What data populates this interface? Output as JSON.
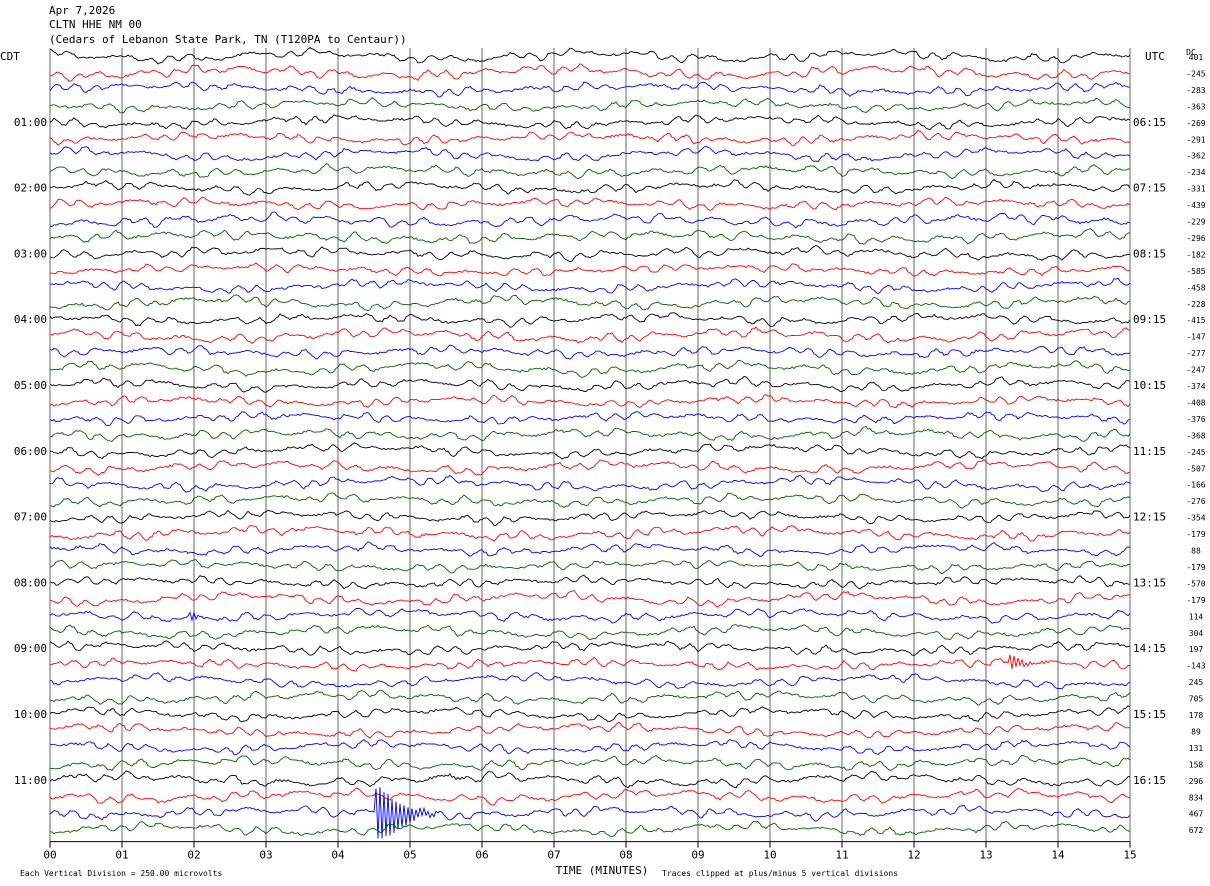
{
  "header": {
    "date": "Apr 7,2026",
    "station": "CLTN HHE NM 00",
    "location": "(Cedars of Lebanon State Park, TN (T120PA to Centaur))"
  },
  "chart_data": {
    "type": "line",
    "title": "Apr 7,2026 CLTN HHE NM 00 (Cedars of Lebanon State Park, TN (T120PA to Centaur))",
    "left_axis_title": "CDT",
    "right_axis_title": "UTC",
    "dc_label": "DC",
    "xlabel": "TIME (MINUTES)",
    "x_ticks": [
      "00",
      "01",
      "02",
      "03",
      "04",
      "05",
      "06",
      "07",
      "08",
      "09",
      "10",
      "11",
      "12",
      "13",
      "14",
      "15"
    ],
    "xlim": [
      0,
      15
    ],
    "rows": 48,
    "row_interval_minutes": 15,
    "left_hour_labels": [
      "01:00",
      "02:00",
      "03:00",
      "04:00",
      "05:00",
      "06:00",
      "07:00",
      "08:00",
      "09:00",
      "10:00",
      "11:00"
    ],
    "right_hour_labels": [
      "06:15",
      "07:15",
      "08:15",
      "09:15",
      "10:15",
      "11:15",
      "12:15",
      "13:15",
      "14:15",
      "15:15",
      "16:15"
    ],
    "trace_colors": [
      "#000000",
      "#ff0000",
      "#0000ff",
      "#006400"
    ],
    "dc_offsets": [
      "401",
      "-245",
      "-283",
      "-363",
      "-269",
      "-291",
      "-362",
      "-234",
      "-331",
      "-439",
      "-229",
      "-296",
      "-182",
      "-585",
      "-458",
      "-228",
      "-415",
      "-147",
      "-277",
      "-247",
      "-374",
      "-408",
      "-376",
      "-368",
      "-245",
      "-507",
      "-166",
      "-276",
      "-354",
      "-179",
      "88",
      "-179",
      "-570",
      "-179",
      "114",
      "304",
      "197",
      "-143",
      "245",
      "705",
      "178",
      "89",
      "131",
      "158",
      "296",
      "834",
      "467",
      "672"
    ],
    "events": [
      {
        "row": 34,
        "minute": 1.95,
        "note": "spike"
      },
      {
        "row": 37,
        "minute": 13.35,
        "note": "spike"
      },
      {
        "row": 44,
        "minute": 3.0,
        "note": "small event"
      },
      {
        "row": 46,
        "minute": 4.55,
        "note": "large event (clipped)"
      },
      {
        "row": 44,
        "minute": 5.25,
        "note": "small event"
      }
    ],
    "footer_left": "Each Vertical Division =  250.00 microvolts",
    "footer_right": "Traces clipped at plus/minus 5 vertical divisions",
    "grid": true
  }
}
